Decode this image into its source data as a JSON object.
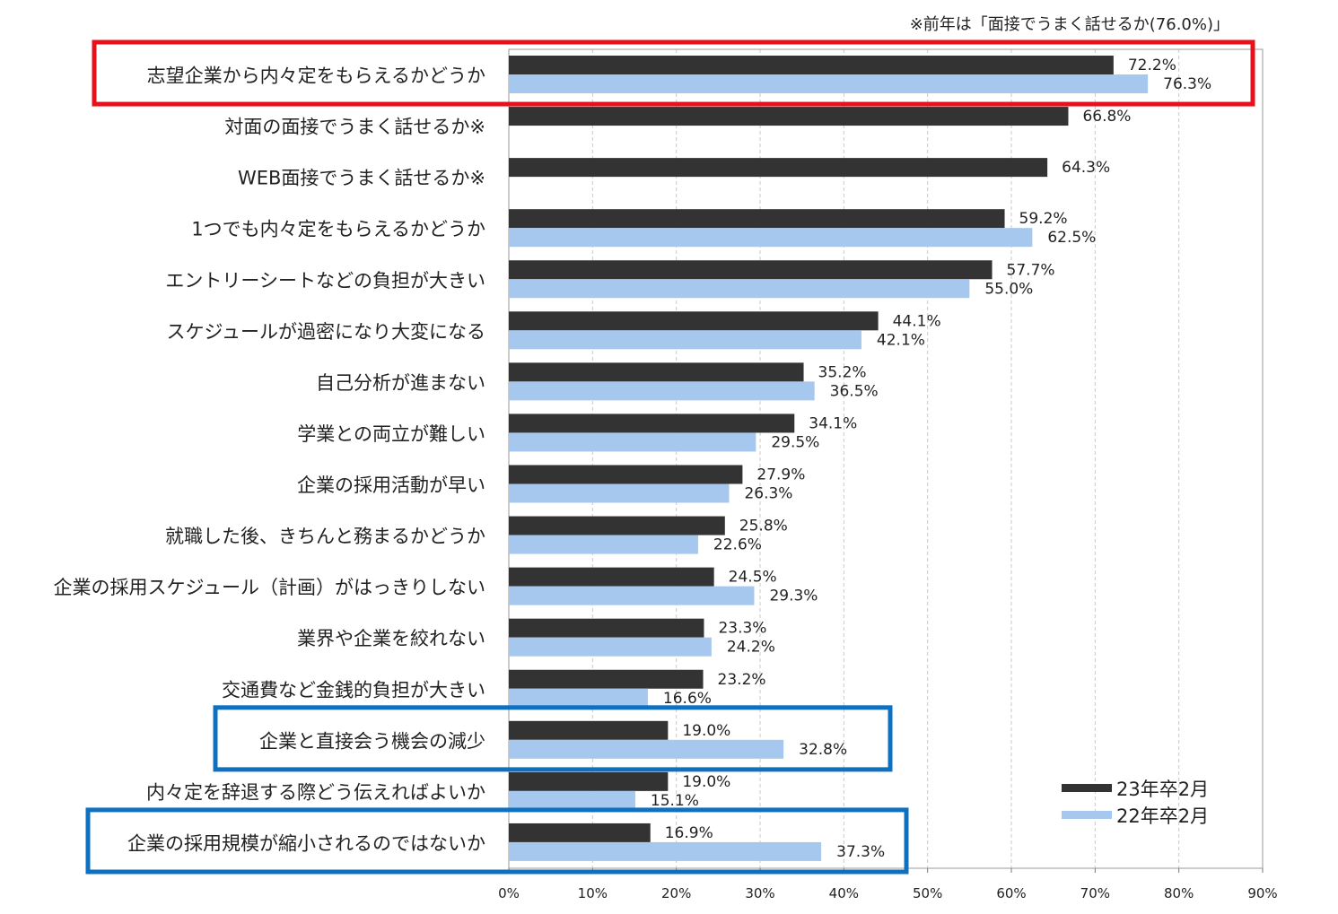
{
  "chart_data": {
    "type": "bar",
    "orientation": "horizontal",
    "note": "※前年は「面接でうまく話せるか(76.0%)」",
    "categories": [
      "志望企業から内々定をもらえるかどうか",
      "対面の面接でうまく話せるか※",
      "WEB面接でうまく話せるか※",
      "1つでも内々定をもらえるかどうか",
      "エントリーシートなどの負担が大きい",
      "スケジュールが過密になり大変になる",
      "自己分析が進まない",
      "学業との両立が難しい",
      "企業の採用活動が早い",
      "就職した後、きちんと務まるかどうか",
      "企業の採用スケジュール（計画）がはっきりしない",
      "業界や企業を絞れない",
      "交通費など金銭的負担が大きい",
      "企業と直接会う機会の減少",
      "内々定を辞退する際どう伝えればよいか",
      "企業の採用規模が縮小されるのではないか"
    ],
    "series": [
      {
        "name": "23年卒2月",
        "color": "#333333",
        "values": [
          72.2,
          66.8,
          64.3,
          59.2,
          57.7,
          44.1,
          35.2,
          34.1,
          27.9,
          25.8,
          24.5,
          23.3,
          23.2,
          19.0,
          19.0,
          16.9
        ],
        "labels": [
          "72.2%",
          "66.8%",
          "64.3%",
          "59.2%",
          "57.7%",
          "44.1%",
          "35.2%",
          "34.1%",
          "27.9%",
          "25.8%",
          "24.5%",
          "23.3%",
          "23.2%",
          "19.0%",
          "19.0%",
          "16.9%"
        ]
      },
      {
        "name": "22年卒2月",
        "color": "#a6c8ee",
        "values": [
          76.3,
          null,
          null,
          62.5,
          55.0,
          42.1,
          36.5,
          29.5,
          26.3,
          22.6,
          29.3,
          24.2,
          16.6,
          32.8,
          15.1,
          37.3
        ],
        "labels": [
          "76.3%",
          null,
          null,
          "62.5%",
          "55.0%",
          "42.1%",
          "36.5%",
          "29.5%",
          "26.3%",
          "22.6%",
          "29.3%",
          "24.2%",
          "16.6%",
          "32.8%",
          "15.1%",
          "37.3%"
        ]
      }
    ],
    "xlim": [
      0,
      90
    ],
    "xticks": [
      0,
      10,
      20,
      30,
      40,
      50,
      60,
      70,
      80,
      90
    ],
    "xtick_labels": [
      "0%",
      "10%",
      "20%",
      "30%",
      "40%",
      "50%",
      "60%",
      "70%",
      "80%",
      "90%"
    ],
    "grid": "vertical dashed",
    "legend_position": "bottom-right",
    "highlights": [
      {
        "category_index": 0,
        "color": "#e8101a"
      },
      {
        "category_index": 13,
        "color": "#1070c0"
      },
      {
        "category_index": 15,
        "color": "#1070c0"
      }
    ]
  }
}
